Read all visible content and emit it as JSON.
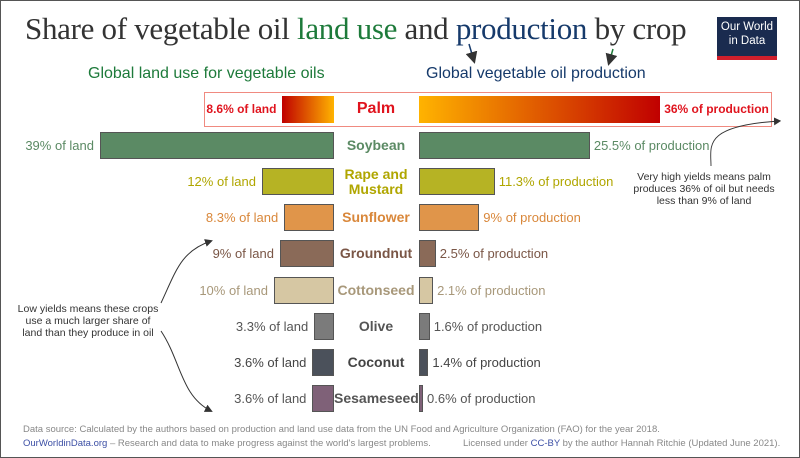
{
  "title": {
    "p1": "Share of vegetable oil ",
    "p2": "land use",
    "p3": " and ",
    "p4": "production",
    "p5": " by crop"
  },
  "logo": {
    "line1": "Our World",
    "line2": "in Data"
  },
  "subtitles": {
    "land": "Global land use for vegetable oils",
    "production": "Global vegetable oil production"
  },
  "notes": {
    "palm": "Very high yields means palm produces 36% of oil but needs less than 9% of land",
    "low": "Low yields means these crops use a much larger share of land than they produce in oil"
  },
  "footer": {
    "source": "Data source: Calculated by the authors based on production and land use data from the UN Food and Agriculture Organization (FAO) for the year 2018.",
    "site": "OurWorldinData.org",
    "mission": " – Research and data to make progress against the world's largest problems.",
    "license_pre": "Licensed under ",
    "license": "CC-BY",
    "license_post": " by the author Hannah Ritchie (Updated June 2021)."
  },
  "chart_data": {
    "type": "bar",
    "title": "Share of vegetable oil land use and production by crop",
    "categories": [
      "Palm",
      "Soybean",
      "Rape and Mustard",
      "Sunflower",
      "Groundnut",
      "Cottonseed",
      "Olive",
      "Coconut",
      "Sesameseed"
    ],
    "series": [
      {
        "name": "Global land use for vegetable oils",
        "unit": "% of land",
        "values": [
          8.6,
          39,
          12,
          8.3,
          9,
          10,
          3.3,
          3.6,
          3.6
        ],
        "labels": [
          "8.6% of land",
          "39% of land",
          "12% of land",
          "8.3% of land",
          "9% of land",
          "10% of land",
          "3.3% of land",
          "3.6% of land",
          "3.6% of land"
        ]
      },
      {
        "name": "Global vegetable oil production",
        "unit": "% of production",
        "values": [
          36,
          25.5,
          11.3,
          9,
          2.5,
          2.1,
          1.6,
          1.4,
          0.6
        ],
        "labels": [
          "36% of production",
          "25.5% of production",
          "11.3% of production",
          "9% of production",
          "2.5% of production",
          "2.1% of production",
          "1.6% of production",
          "1.4% of production",
          "0.6% of production"
        ]
      }
    ],
    "colors": [
      "#c00000",
      "#5b8a64",
      "#b6b324",
      "#e0954a",
      "#8a6a58",
      "#d6c7a3",
      "#7b7b7b",
      "#4b515b",
      "#7f6178"
    ],
    "label_colors": [
      "#e0141e",
      "#5b8a64",
      "#b0a600",
      "#d9873a",
      "#7a5646",
      "#a8987a",
      "#555",
      "#444",
      "#555"
    ]
  }
}
